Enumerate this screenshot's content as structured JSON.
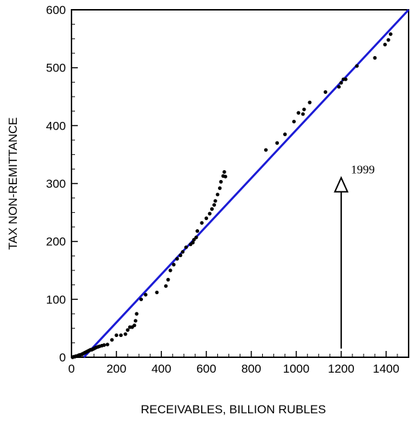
{
  "chart_data": {
    "type": "scatter",
    "title": "",
    "xlabel": "RECEIVABLES, BILLION RUBLES",
    "ylabel": "TAX NON-REMITTANCE",
    "xlim": [
      0,
      1500
    ],
    "ylim": [
      0,
      600
    ],
    "x_ticks": [
      0,
      200,
      400,
      600,
      800,
      1000,
      1200,
      1400
    ],
    "y_ticks": [
      0,
      100,
      200,
      300,
      400,
      500,
      600
    ],
    "grid": false,
    "colors": {
      "points": "#000000",
      "line": "#1c1cd6",
      "axes": "#000000"
    },
    "points": [
      [
        5,
        0
      ],
      [
        10,
        1
      ],
      [
        15,
        1
      ],
      [
        20,
        2
      ],
      [
        25,
        2
      ],
      [
        30,
        3
      ],
      [
        35,
        4
      ],
      [
        40,
        4
      ],
      [
        45,
        5
      ],
      [
        50,
        6
      ],
      [
        55,
        7
      ],
      [
        60,
        8
      ],
      [
        65,
        9
      ],
      [
        70,
        10
      ],
      [
        75,
        11
      ],
      [
        80,
        12
      ],
      [
        85,
        13
      ],
      [
        90,
        13
      ],
      [
        95,
        14
      ],
      [
        100,
        15
      ],
      [
        105,
        16
      ],
      [
        110,
        17
      ],
      [
        118,
        18
      ],
      [
        125,
        19
      ],
      [
        135,
        20
      ],
      [
        145,
        21
      ],
      [
        160,
        22
      ],
      [
        180,
        30
      ],
      [
        200,
        38
      ],
      [
        220,
        38
      ],
      [
        240,
        40
      ],
      [
        250,
        47
      ],
      [
        260,
        52
      ],
      [
        270,
        52
      ],
      [
        280,
        55
      ],
      [
        285,
        63
      ],
      [
        290,
        75
      ],
      [
        310,
        100
      ],
      [
        330,
        108
      ],
      [
        380,
        112
      ],
      [
        420,
        123
      ],
      [
        430,
        134
      ],
      [
        440,
        150
      ],
      [
        455,
        160
      ],
      [
        470,
        170
      ],
      [
        485,
        176
      ],
      [
        495,
        182
      ],
      [
        510,
        190
      ],
      [
        530,
        195
      ],
      [
        540,
        198
      ],
      [
        545,
        203
      ],
      [
        555,
        207
      ],
      [
        560,
        218
      ],
      [
        580,
        232
      ],
      [
        600,
        240
      ],
      [
        615,
        248
      ],
      [
        625,
        256
      ],
      [
        635,
        263
      ],
      [
        640,
        270
      ],
      [
        650,
        281
      ],
      [
        660,
        292
      ],
      [
        665,
        303
      ],
      [
        675,
        313
      ],
      [
        680,
        320
      ],
      [
        685,
        312
      ],
      [
        865,
        358
      ],
      [
        915,
        370
      ],
      [
        950,
        385
      ],
      [
        990,
        407
      ],
      [
        1010,
        422
      ],
      [
        1030,
        420
      ],
      [
        1035,
        428
      ],
      [
        1060,
        440
      ],
      [
        1130,
        458
      ],
      [
        1190,
        467
      ],
      [
        1200,
        474
      ],
      [
        1210,
        480
      ],
      [
        1220,
        480
      ],
      [
        1270,
        503
      ],
      [
        1350,
        517
      ],
      [
        1395,
        540
      ],
      [
        1410,
        548
      ],
      [
        1420,
        558
      ]
    ],
    "fit_line": {
      "x": [
        55,
        1500
      ],
      "y": [
        0,
        600
      ]
    },
    "annotation": {
      "text": "1999",
      "arrow_x": 1200,
      "arrow_y_from": 15,
      "arrow_y_to": 310
    }
  }
}
